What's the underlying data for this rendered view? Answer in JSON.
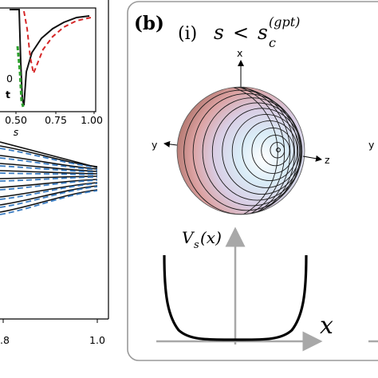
{
  "left_panel": {
    "inset": {
      "x_ticks": [
        "0.50",
        "0.75",
        "1.00"
      ],
      "x_label": "s",
      "legend_fragments": [
        "0",
        "t"
      ],
      "colors": {
        "solid": "#111111",
        "dashed_red": "#d62728",
        "dashed_green": "#2ca02c"
      }
    },
    "main": {
      "x_ticks": [
        ".8",
        "1.0"
      ],
      "colors": {
        "solid": "#111111",
        "dashed_blue": "#3a7cc2"
      }
    }
  },
  "panel_b": {
    "label": "(b)",
    "subtitle": {
      "roman": "(i)",
      "s": "s",
      "lt": "<",
      "sc": "s",
      "sub": "c",
      "sup": "(gpt)"
    },
    "sphere_axes": {
      "x": "x",
      "y": "y",
      "z": "z"
    },
    "potential": {
      "V": "V",
      "sub": "s",
      "arg": "(x)",
      "x_axis": "x"
    },
    "colors": {
      "frame": "#9a9a9a",
      "axis_gray": "#a8a8a8",
      "curve": "#000000"
    }
  },
  "right_edge": {
    "axis_fragment": "y"
  }
}
